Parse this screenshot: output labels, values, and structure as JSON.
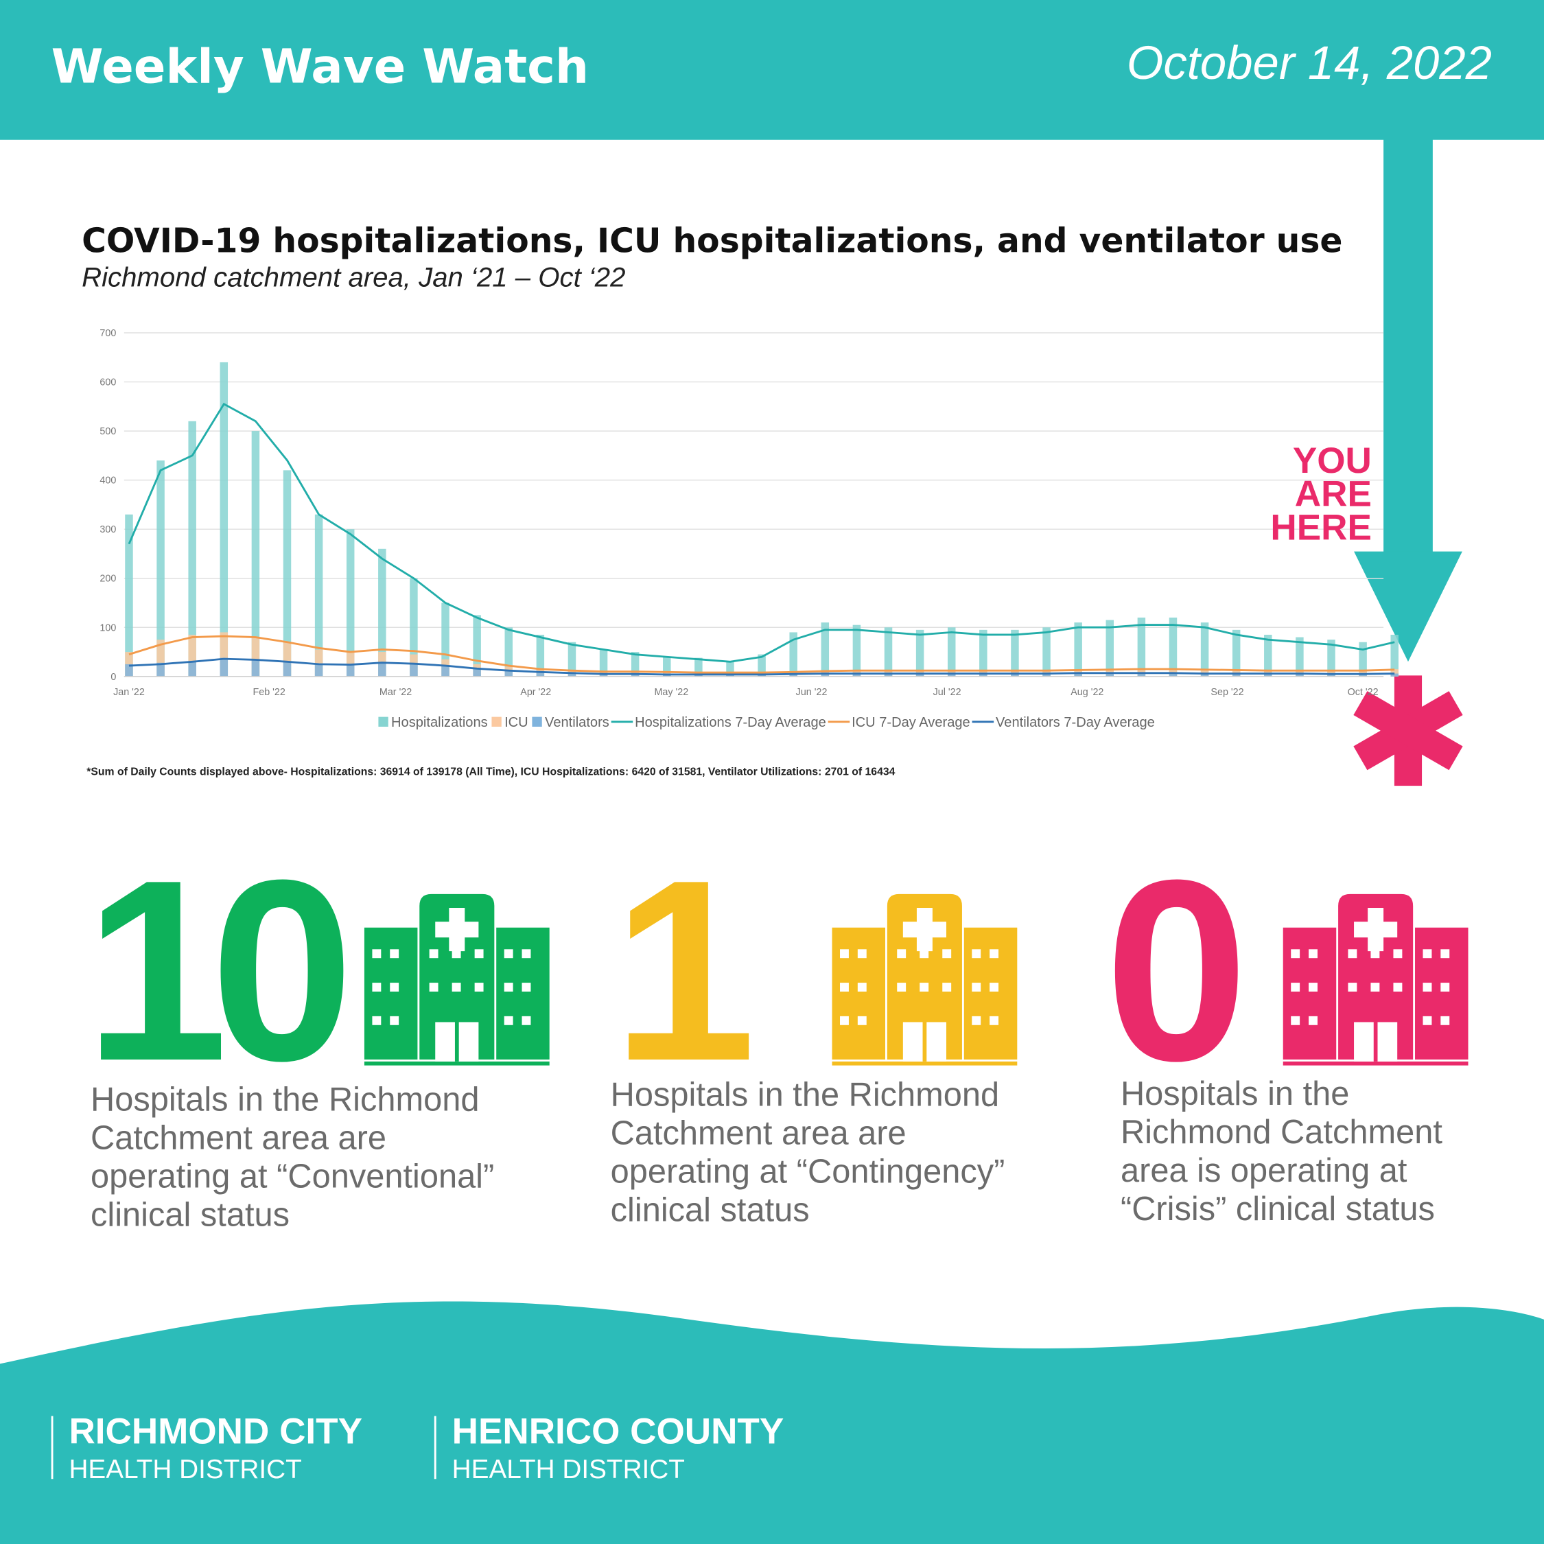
{
  "header": {
    "title": "Weekly Wave Watch",
    "date": "October 14, 2022"
  },
  "chart_data": {
    "type": "bar",
    "title": "COVID-19 hospitalizations, ICU hospitalizations, and ventilator use",
    "subtitle": "Richmond catchment area, Jan ‘21 – Oct ‘22",
    "annotation": [
      "YOU",
      "ARE",
      "HERE"
    ],
    "footnote": "*Sum of Daily Counts displayed above- Hospitalizations: 36914 of 139178 (All Time), ICU Hospitalizations: 6420 of 31581, Ventilator Utilizations: 2701 of 16434",
    "x": [
      0,
      7,
      14,
      21,
      28,
      35,
      42,
      49,
      56,
      63,
      70,
      77,
      84,
      91,
      98,
      105,
      112,
      119,
      126,
      133,
      140,
      147,
      154,
      161,
      168,
      175,
      182,
      189,
      196,
      203,
      210,
      217,
      224,
      231,
      238,
      245,
      252,
      259,
      266,
      273,
      280
    ],
    "xlim": [
      0,
      283
    ],
    "xticks": [
      {
        "value": 0,
        "label": "Jan '22"
      },
      {
        "value": 31,
        "label": "Feb '22"
      },
      {
        "value": 59,
        "label": "Mar '22"
      },
      {
        "value": 90,
        "label": "Apr '22"
      },
      {
        "value": 120,
        "label": "May '22"
      },
      {
        "value": 151,
        "label": "Jun '22"
      },
      {
        "value": 181,
        "label": "Jul '22"
      },
      {
        "value": 212,
        "label": "Aug '22"
      },
      {
        "value": 243,
        "label": "Sep '22"
      },
      {
        "value": 273,
        "label": "Oct '22"
      }
    ],
    "ylim": [
      0,
      700
    ],
    "yticks": [
      0,
      100,
      200,
      300,
      400,
      500,
      600,
      700
    ],
    "grid": true,
    "series": [
      {
        "name": "Hospitalizations",
        "type": "bar",
        "color": "#86d4d1",
        "values": [
          330,
          440,
          520,
          640,
          500,
          420,
          330,
          300,
          260,
          200,
          150,
          125,
          100,
          85,
          70,
          55,
          50,
          40,
          38,
          30,
          45,
          90,
          110,
          105,
          100,
          95,
          100,
          95,
          95,
          100,
          110,
          115,
          120,
          120,
          110,
          95,
          85,
          80,
          75,
          70,
          85
        ]
      },
      {
        "name": "ICU",
        "type": "bar",
        "color": "#fbc9a0",
        "values": [
          50,
          75,
          85,
          90,
          80,
          70,
          55,
          50,
          50,
          45,
          35,
          25,
          20,
          15,
          12,
          10,
          10,
          10,
          8,
          8,
          8,
          10,
          12,
          12,
          12,
          12,
          13,
          13,
          12,
          12,
          14,
          15,
          16,
          15,
          14,
          13,
          12,
          12,
          12,
          12,
          15
        ]
      },
      {
        "name": "Ventilators",
        "type": "bar",
        "color": "#7fb3dd",
        "values": [
          25,
          28,
          30,
          38,
          35,
          30,
          25,
          25,
          30,
          28,
          22,
          15,
          12,
          8,
          6,
          5,
          5,
          4,
          4,
          4,
          4,
          5,
          6,
          6,
          6,
          6,
          6,
          6,
          6,
          6,
          7,
          7,
          7,
          7,
          6,
          6,
          6,
          6,
          5,
          5,
          6
        ]
      },
      {
        "name": "Hospitalizations 7-Day Average",
        "type": "line",
        "color": "#22ada9",
        "values": [
          270,
          420,
          450,
          555,
          520,
          440,
          330,
          290,
          240,
          200,
          150,
          120,
          95,
          80,
          65,
          55,
          45,
          40,
          35,
          30,
          40,
          75,
          95,
          95,
          90,
          85,
          90,
          85,
          85,
          90,
          100,
          100,
          105,
          105,
          100,
          85,
          75,
          70,
          65,
          55,
          70
        ]
      },
      {
        "name": "ICU 7-Day Average",
        "type": "line",
        "color": "#f39a4a",
        "values": [
          45,
          65,
          80,
          82,
          80,
          70,
          58,
          50,
          55,
          52,
          45,
          32,
          22,
          15,
          12,
          10,
          10,
          9,
          8,
          8,
          8,
          9,
          11,
          12,
          12,
          12,
          12,
          12,
          12,
          12,
          13,
          14,
          15,
          15,
          14,
          13,
          12,
          12,
          12,
          12,
          14
        ]
      },
      {
        "name": "Ventilators 7-Day Average",
        "type": "line",
        "color": "#2f73b5",
        "values": [
          22,
          25,
          30,
          36,
          34,
          30,
          25,
          24,
          28,
          26,
          22,
          16,
          12,
          9,
          7,
          5,
          5,
          4,
          4,
          4,
          4,
          5,
          6,
          6,
          6,
          6,
          6,
          6,
          6,
          6,
          7,
          7,
          7,
          7,
          6,
          6,
          6,
          6,
          5,
          5,
          6
        ]
      }
    ]
  },
  "status": [
    {
      "count": "10",
      "color": "#0db15a",
      "lines": [
        "Hospitals in the Richmond",
        "Catchment area are",
        "operating at “Conventional”",
        "clinical status"
      ]
    },
    {
      "count": "1",
      "color": "#f5bd1f",
      "lines": [
        "Hospitals in the Richmond",
        "Catchment area are",
        "operating at “Contingency”",
        "clinical status"
      ]
    },
    {
      "count": "0",
      "color": "#ea2a6a",
      "lines": [
        "Hospitals in the",
        "Richmond Catchment",
        "area is operating at",
        "“Crisis” clinical status"
      ]
    }
  ],
  "footer": {
    "orgs": [
      {
        "name": "RICHMOND CITY",
        "sub": "HEALTH DISTRICT"
      },
      {
        "name": "HENRICO COUNTY",
        "sub": "HEALTH DISTRICT"
      }
    ]
  }
}
